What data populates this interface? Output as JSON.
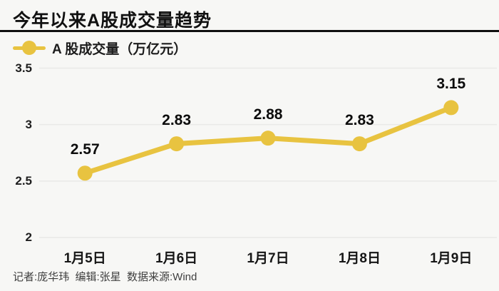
{
  "title": "今年以来A股成交量趋势",
  "legend": {
    "label": "A 股成交量（万亿元）"
  },
  "footer": {
    "credits": "记者:庞华玮  编辑:张星  数据来源:Wind"
  },
  "colors": {
    "accent": "#e8c340",
    "background": "#f7f7f5",
    "gridline": "#e9e9e7",
    "text": "#111111",
    "footer_text": "#3f3f3f"
  },
  "chart_data": {
    "type": "line",
    "title": "今年以来A股成交量趋势",
    "categories": [
      "1月5日",
      "1月6日",
      "1月7日",
      "1月8日",
      "1月9日"
    ],
    "series": [
      {
        "name": "A 股成交量（万亿元）",
        "values": [
          2.57,
          2.83,
          2.88,
          2.83,
          3.15
        ]
      }
    ],
    "data_labels": [
      "2.57",
      "2.83",
      "2.88",
      "2.83",
      "3.15"
    ],
    "xlabel": "",
    "ylabel": "",
    "ylim": [
      2,
      3.5
    ],
    "yticks": [
      {
        "value": 3.5,
        "label": "3.5"
      },
      {
        "value": 3,
        "label": "3"
      },
      {
        "value": 2.5,
        "label": "2.5"
      },
      {
        "value": 2,
        "label": "2"
      }
    ],
    "grid": true,
    "legend_position": "top-left"
  }
}
